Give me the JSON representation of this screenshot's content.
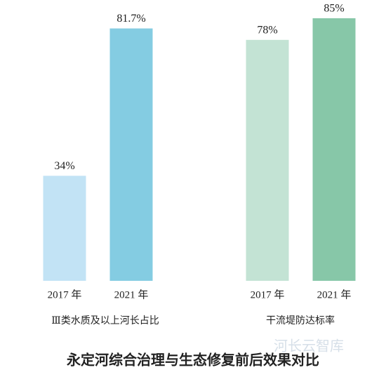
{
  "title": "永定河综合治理与生态修复前后效果对比",
  "watermark": "河长云智库",
  "chart_data": [
    {
      "type": "bar",
      "xlabel": "Ⅲ类水质及以上河长占比",
      "categories": [
        "2017 年",
        "2021 年"
      ],
      "values": [
        34,
        81.7
      ],
      "value_labels": [
        "34%",
        "81.7%"
      ],
      "colors": [
        "#c2e3f5",
        "#84cce2"
      ]
    },
    {
      "type": "bar",
      "xlabel": "干流堤防达标率",
      "categories": [
        "2017 年",
        "2021 年"
      ],
      "values": [
        78,
        85
      ],
      "value_labels": [
        "78%",
        "85%"
      ],
      "colors": [
        "#c3e3d4",
        "#87c7a8"
      ]
    }
  ]
}
